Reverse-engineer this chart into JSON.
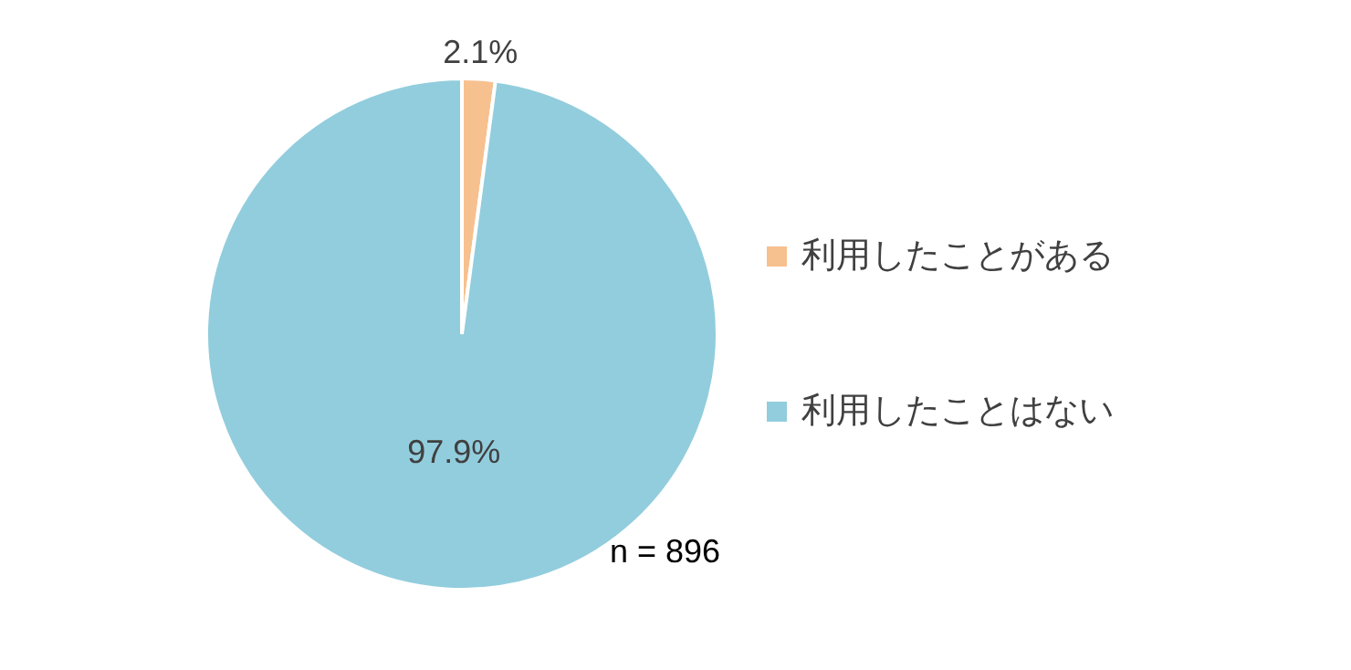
{
  "chart_data": {
    "type": "pie",
    "categories": [
      "利用したことがある",
      "利用したことはない"
    ],
    "values": [
      2.1,
      97.9
    ],
    "colors": [
      "#f7c08f",
      "#92cddd"
    ],
    "value_labels": [
      "2.1%",
      "97.9%"
    ],
    "legend": "right",
    "annotations": [
      "n = 896"
    ]
  }
}
